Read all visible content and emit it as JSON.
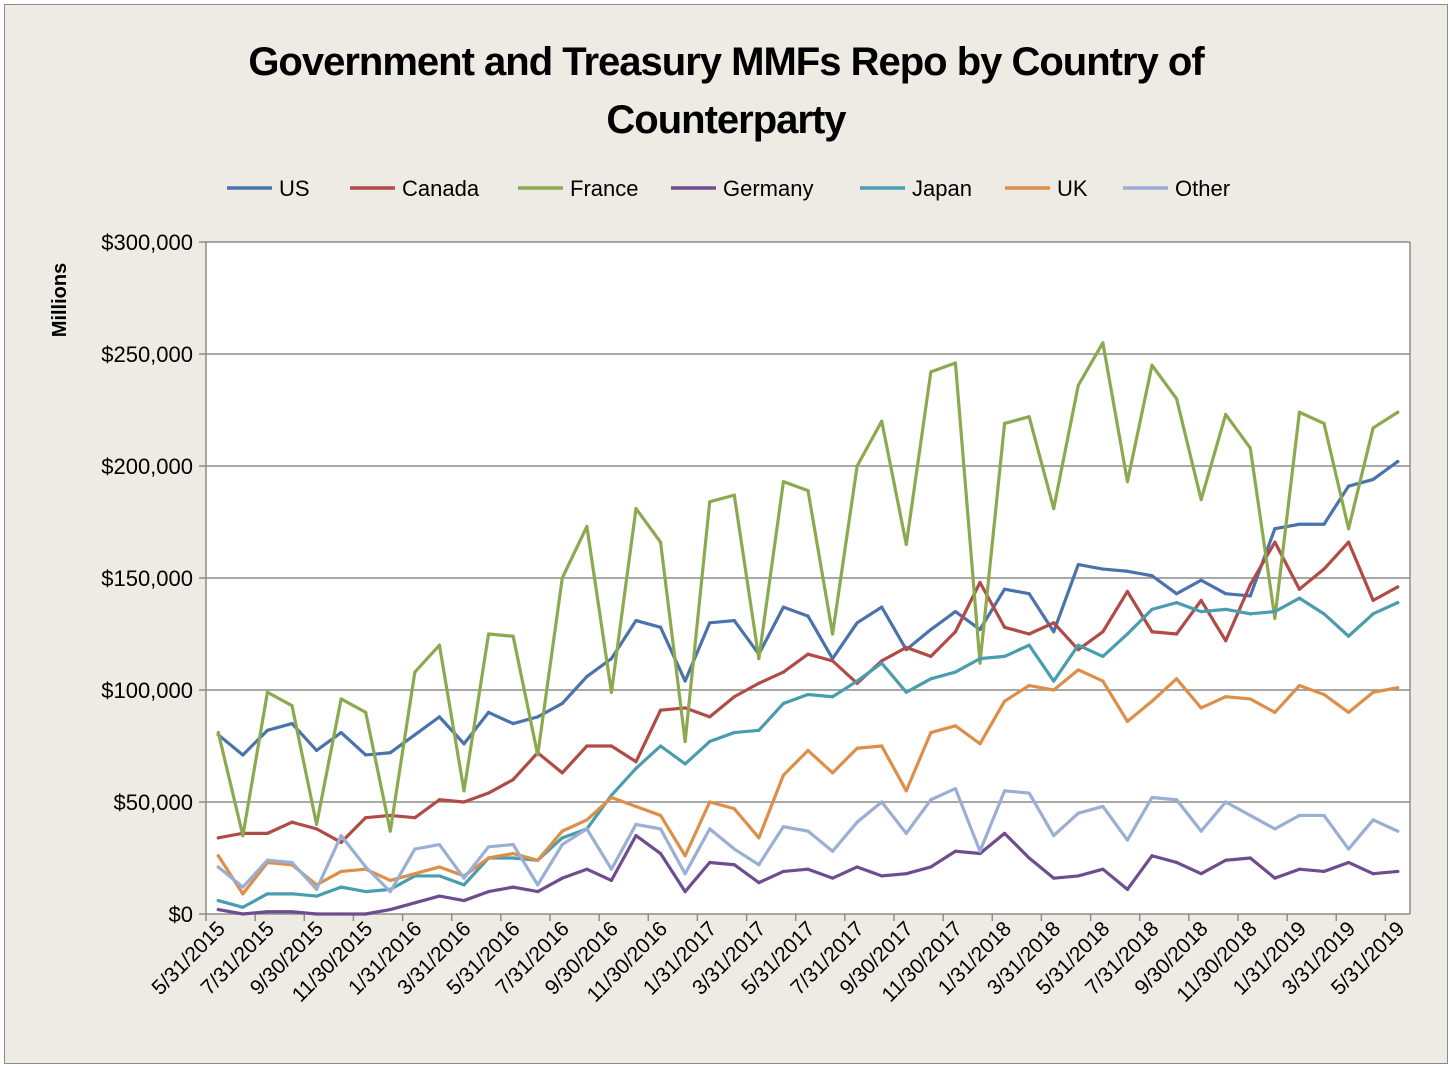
{
  "chart_data": {
    "type": "line",
    "title_lines": [
      "Government and Treasury MMFs Repo by Country of",
      "Counterparty"
    ],
    "ylabel": "Millions",
    "xlabel": "",
    "ylim": [
      0,
      300000
    ],
    "yticks": [
      0,
      50000,
      100000,
      150000,
      200000,
      250000,
      300000
    ],
    "ytick_labels": [
      "$0",
      "$50,000",
      "$100,000",
      "$150,000",
      "$200,000",
      "$250,000",
      "$300,000"
    ],
    "grid": true,
    "legend_position": "top",
    "x": [
      "5/31/2015",
      "6/30/2015",
      "7/31/2015",
      "8/31/2015",
      "9/30/2015",
      "10/31/2015",
      "11/30/2015",
      "12/31/2015",
      "1/31/2016",
      "2/29/2016",
      "3/31/2016",
      "4/30/2016",
      "5/31/2016",
      "6/30/2016",
      "7/31/2016",
      "8/31/2016",
      "9/30/2016",
      "10/31/2016",
      "11/30/2016",
      "12/31/2016",
      "1/31/2017",
      "2/28/2017",
      "3/31/2017",
      "4/30/2017",
      "5/31/2017",
      "6/30/2017",
      "7/31/2017",
      "8/31/2017",
      "9/30/2017",
      "10/31/2017",
      "11/30/2017",
      "12/31/2017",
      "1/31/2018",
      "2/28/2018",
      "3/31/2018",
      "4/30/2018",
      "5/31/2018",
      "6/30/2018",
      "7/31/2018",
      "8/31/2018",
      "9/30/2018",
      "10/31/2018",
      "11/30/2018",
      "12/31/2018",
      "1/31/2019",
      "2/28/2019",
      "3/31/2019",
      "4/30/2019",
      "5/31/2019"
    ],
    "x_tick_labels": [
      "5/31/2015",
      "7/31/2015",
      "9/30/2015",
      "11/30/2015",
      "1/31/2016",
      "3/31/2016",
      "5/31/2016",
      "7/31/2016",
      "9/30/2016",
      "11/30/2016",
      "1/31/2017",
      "3/31/2017",
      "5/31/2017",
      "7/31/2017",
      "9/30/2017",
      "11/30/2017",
      "1/31/2018",
      "3/31/2018",
      "5/31/2018",
      "7/31/2018",
      "9/30/2018",
      "11/30/2018",
      "1/31/2019",
      "3/31/2019",
      "5/31/2019"
    ],
    "series": [
      {
        "name": "US",
        "color": "#4a72ab",
        "values": [
          80000,
          71000,
          82000,
          85000,
          73000,
          81000,
          71000,
          72000,
          80000,
          88000,
          76000,
          90000,
          85000,
          88000,
          94000,
          106000,
          114000,
          131000,
          128000,
          104000,
          130000,
          131000,
          116000,
          137000,
          133000,
          114000,
          130000,
          137000,
          118000,
          127000,
          135000,
          127000,
          145000,
          143000,
          126000,
          156000,
          154000,
          153000,
          151000,
          143000,
          149000,
          143000,
          142000,
          172000,
          174000,
          174000,
          191000,
          194000,
          202000
        ]
      },
      {
        "name": "Canada",
        "color": "#b04b46",
        "values": [
          34000,
          36000,
          36000,
          41000,
          38000,
          32000,
          43000,
          44000,
          43000,
          51000,
          50000,
          54000,
          60000,
          72000,
          63000,
          75000,
          75000,
          68000,
          91000,
          92000,
          88000,
          97000,
          103000,
          108000,
          116000,
          113000,
          103000,
          113000,
          119000,
          115000,
          126000,
          148000,
          128000,
          125000,
          130000,
          118000,
          126000,
          144000,
          126000,
          125000,
          140000,
          122000,
          147000,
          166000,
          145000,
          154000,
          166000,
          140000,
          146000
        ]
      },
      {
        "name": "France",
        "color": "#8baa4f",
        "values": [
          81000,
          35000,
          99000,
          93000,
          40000,
          96000,
          90000,
          37000,
          108000,
          120000,
          55000,
          125000,
          124000,
          71000,
          150000,
          173000,
          99000,
          181000,
          166000,
          77000,
          184000,
          187000,
          114000,
          193000,
          189000,
          125000,
          200000,
          220000,
          165000,
          242000,
          246000,
          112000,
          219000,
          222000,
          181000,
          236000,
          255000,
          193000,
          245000,
          230000,
          185000,
          223000,
          208000,
          132000,
          224000,
          219000,
          172000,
          217000,
          224000
        ]
      },
      {
        "name": "Germany",
        "color": "#6e4d8f",
        "values": [
          2000,
          0,
          1000,
          1000,
          0,
          0,
          0,
          2000,
          5000,
          8000,
          6000,
          10000,
          12000,
          10000,
          16000,
          20000,
          15000,
          35000,
          27000,
          10000,
          23000,
          22000,
          14000,
          19000,
          20000,
          16000,
          21000,
          17000,
          18000,
          21000,
          28000,
          27000,
          36000,
          25000,
          16000,
          17000,
          20000,
          11000,
          26000,
          23000,
          18000,
          24000,
          25000,
          16000,
          20000,
          19000,
          23000,
          18000,
          19000
        ]
      },
      {
        "name": "Japan",
        "color": "#4a9caf",
        "values": [
          6000,
          3000,
          9000,
          9000,
          8000,
          12000,
          10000,
          11000,
          17000,
          17000,
          13000,
          25000,
          25000,
          24000,
          34000,
          38000,
          53000,
          65000,
          75000,
          67000,
          77000,
          81000,
          82000,
          94000,
          98000,
          97000,
          104000,
          112000,
          99000,
          105000,
          108000,
          114000,
          115000,
          120000,
          104000,
          120000,
          115000,
          125000,
          136000,
          139000,
          135000,
          136000,
          134000,
          135000,
          141000,
          134000,
          124000,
          134000,
          139000
        ]
      },
      {
        "name": "UK",
        "color": "#dd8f49",
        "values": [
          26000,
          9000,
          23000,
          22000,
          13000,
          19000,
          20000,
          15000,
          18000,
          21000,
          17000,
          25000,
          27000,
          24000,
          37000,
          42000,
          52000,
          48000,
          44000,
          26000,
          50000,
          47000,
          34000,
          62000,
          73000,
          63000,
          74000,
          75000,
          55000,
          81000,
          84000,
          76000,
          95000,
          102000,
          100000,
          109000,
          104000,
          86000,
          95000,
          105000,
          92000,
          97000,
          96000,
          90000,
          102000,
          98000,
          90000,
          99000,
          101000
        ]
      },
      {
        "name": "Other",
        "color": "#9aafd3",
        "values": [
          21000,
          12000,
          24000,
          23000,
          11000,
          35000,
          21000,
          10000,
          29000,
          31000,
          16000,
          30000,
          31000,
          13000,
          31000,
          38000,
          20000,
          40000,
          38000,
          18000,
          38000,
          29000,
          22000,
          39000,
          37000,
          28000,
          41000,
          50000,
          36000,
          51000,
          56000,
          28000,
          55000,
          54000,
          35000,
          45000,
          48000,
          33000,
          52000,
          51000,
          37000,
          50000,
          44000,
          38000,
          44000,
          44000,
          29000,
          42000,
          37000
        ]
      }
    ]
  }
}
